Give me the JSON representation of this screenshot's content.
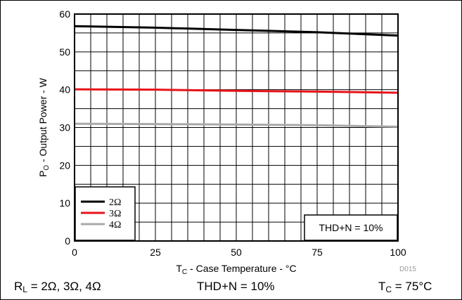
{
  "chart_data": {
    "type": "line",
    "x": [
      0,
      25,
      50,
      75,
      100
    ],
    "series": [
      {
        "name": "2Ω",
        "color": "#000000",
        "values": [
          56.8,
          56.4,
          55.8,
          55.2,
          54.3
        ]
      },
      {
        "name": "3Ω",
        "color": "#e8131b",
        "values": [
          40.1,
          40.0,
          39.7,
          39.5,
          39.2
        ]
      },
      {
        "name": "4Ω",
        "color": "#a9a9a9",
        "values": [
          31.0,
          30.9,
          30.8,
          30.6,
          30.2
        ]
      }
    ],
    "xlim": [
      0,
      100
    ],
    "ylim": [
      0,
      60
    ],
    "xticks": [
      "0",
      "25",
      "50",
      "75",
      "100"
    ],
    "yticks": [
      "0",
      "10",
      "20",
      "30",
      "40",
      "50",
      "60"
    ],
    "xlabel": {
      "main": "T",
      "sub": "C",
      "rest": " - Case Temperature - °C"
    },
    "ylabel": {
      "main": "P",
      "sub": "O",
      "rest": " - Output Power - W"
    },
    "grid": true,
    "legend_position": "bottom-left",
    "annotation": "THD+N = 10%",
    "figure_id": "D015"
  },
  "captions": {
    "load": {
      "main": "R",
      "sub": "L",
      "rest": " = 2Ω, 3Ω, 4Ω"
    },
    "thd": "THD+N = 10%",
    "temp": {
      "main": "T",
      "sub": "C",
      "rest": " = 75°C"
    }
  }
}
